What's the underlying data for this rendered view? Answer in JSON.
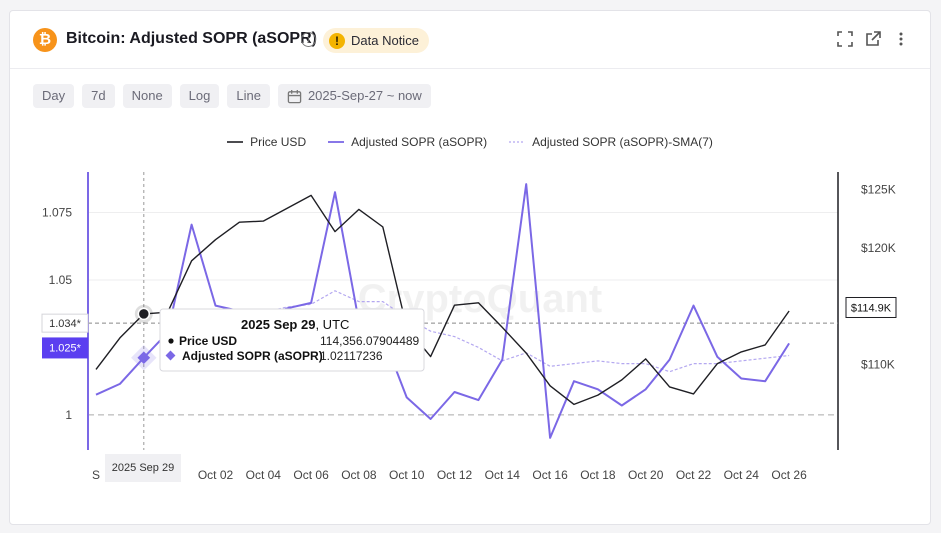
{
  "header": {
    "btc_symbol": "₿",
    "title": "Bitcoin: Adjusted SOPR (aSOPR)",
    "info_symbol": "i",
    "notice_symbol": "!",
    "notice_label": "Data Notice"
  },
  "toolbar": {
    "buttons": [
      "Day",
      "7d",
      "None",
      "Log",
      "Line"
    ],
    "date_range": "2025-Sep-27 ~ now"
  },
  "colors": {
    "price": "#1f1f24",
    "asopr": "#7b68e6",
    "sma": "#b4a8f0",
    "accent": "#5b3ff0",
    "grid": "#eeeeef",
    "notice_bg": "#fdf1d8"
  },
  "watermark": "CryptoQuant",
  "chart_data": {
    "type": "line",
    "x": [
      "Sep 27",
      "Sep 28",
      "Sep 29",
      "Sep 30",
      "Oct 01",
      "Oct 02",
      "Oct 03",
      "Oct 04",
      "Oct 05",
      "Oct 06",
      "Oct 07",
      "Oct 08",
      "Oct 09",
      "Oct 10",
      "Oct 11",
      "Oct 12",
      "Oct 13",
      "Oct 14",
      "Oct 15",
      "Oct 16",
      "Oct 17",
      "Oct 18",
      "Oct 19",
      "Oct 20",
      "Oct 21",
      "Oct 22",
      "Oct 23",
      "Oct 24",
      "Oct 25",
      "Oct 26"
    ],
    "x_ticks": [
      "Sep 27",
      "Sep 29",
      "Oct 02",
      "Oct 04",
      "Oct 06",
      "Oct 08",
      "Oct 10",
      "Oct 12",
      "Oct 14",
      "Oct 16",
      "Oct 18",
      "Oct 20",
      "Oct 22",
      "Oct 24",
      "Oct 26"
    ],
    "x_tick_labels": [
      "S",
      "2025 Sep 29",
      "Oct 02",
      "Oct 04",
      "Oct 06",
      "Oct 08",
      "Oct 10",
      "Oct 12",
      "Oct 14",
      "Oct 16",
      "Oct 18",
      "Oct 20",
      "Oct 22",
      "Oct 24",
      "Oct 26"
    ],
    "series": [
      {
        "name": "Price USD",
        "axis": "right",
        "values": [
          109600,
          112300,
          114356,
          114500,
          118900,
          120700,
          122200,
          122300,
          123400,
          124500,
          121400,
          123300,
          121800,
          113200,
          110700,
          115100,
          115300,
          113200,
          111000,
          108200,
          106600,
          107400,
          108700,
          110500,
          108100,
          107500,
          110100,
          111100,
          111700,
          114600
        ]
      },
      {
        "name": "Adjusted SOPR (aSOPR)",
        "axis": "left",
        "values": [
          1.0075,
          1.0115,
          1.0212,
          1.0305,
          1.0705,
          1.0405,
          1.0385,
          1.0355,
          1.0395,
          1.0415,
          1.0825,
          1.0345,
          1.0295,
          1.0065,
          0.9985,
          1.0085,
          1.0055,
          1.0205,
          1.0855,
          0.9915,
          1.0125,
          1.0095,
          1.0035,
          1.0095,
          1.0205,
          1.0405,
          1.0215,
          1.0135,
          1.0125,
          1.0265
        ]
      },
      {
        "name": "Adjusted SOPR (aSOPR)-SMA(7)",
        "axis": "left",
        "values": [
          null,
          null,
          null,
          null,
          null,
          null,
          null,
          1.038,
          1.04,
          1.041,
          1.046,
          1.042,
          1.042,
          1.036,
          1.031,
          1.029,
          1.025,
          1.02,
          1.023,
          1.018,
          1.019,
          1.02,
          1.019,
          1.019,
          1.016,
          1.019,
          1.019,
          1.02,
          1.021,
          1.022
        ]
      }
    ],
    "left_ticks": [
      1,
      1.05,
      1.075
    ],
    "left_tick_labels": [
      "1",
      "1.05",
      "1.075"
    ],
    "right_ticks": [
      110000,
      120000,
      125000
    ],
    "right_tick_labels": [
      "$110K",
      "$120K",
      "$125K"
    ],
    "y_left_range": [
      0.987,
      1.09
    ],
    "y_right_range": [
      102700,
      126500
    ],
    "baseline": 1,
    "crosshair": {
      "x_label": "2025 Sep 29",
      "left_marker": "1.034*",
      "left_marker_value": 1.034,
      "left_value": "1.025*",
      "left_value_num": 1.025,
      "right_value": "$114.9K",
      "right_value_num": 114900
    },
    "tooltip": {
      "date": "2025 Sep 29",
      "tz": ", UTC",
      "rows": [
        {
          "label": "Price USD",
          "value": "114,356.07904489"
        },
        {
          "label": "Adjusted SOPR (aSOPR)",
          "value": "1.02117236"
        }
      ]
    },
    "grid": "horizontal",
    "legend_position": "top-center"
  }
}
